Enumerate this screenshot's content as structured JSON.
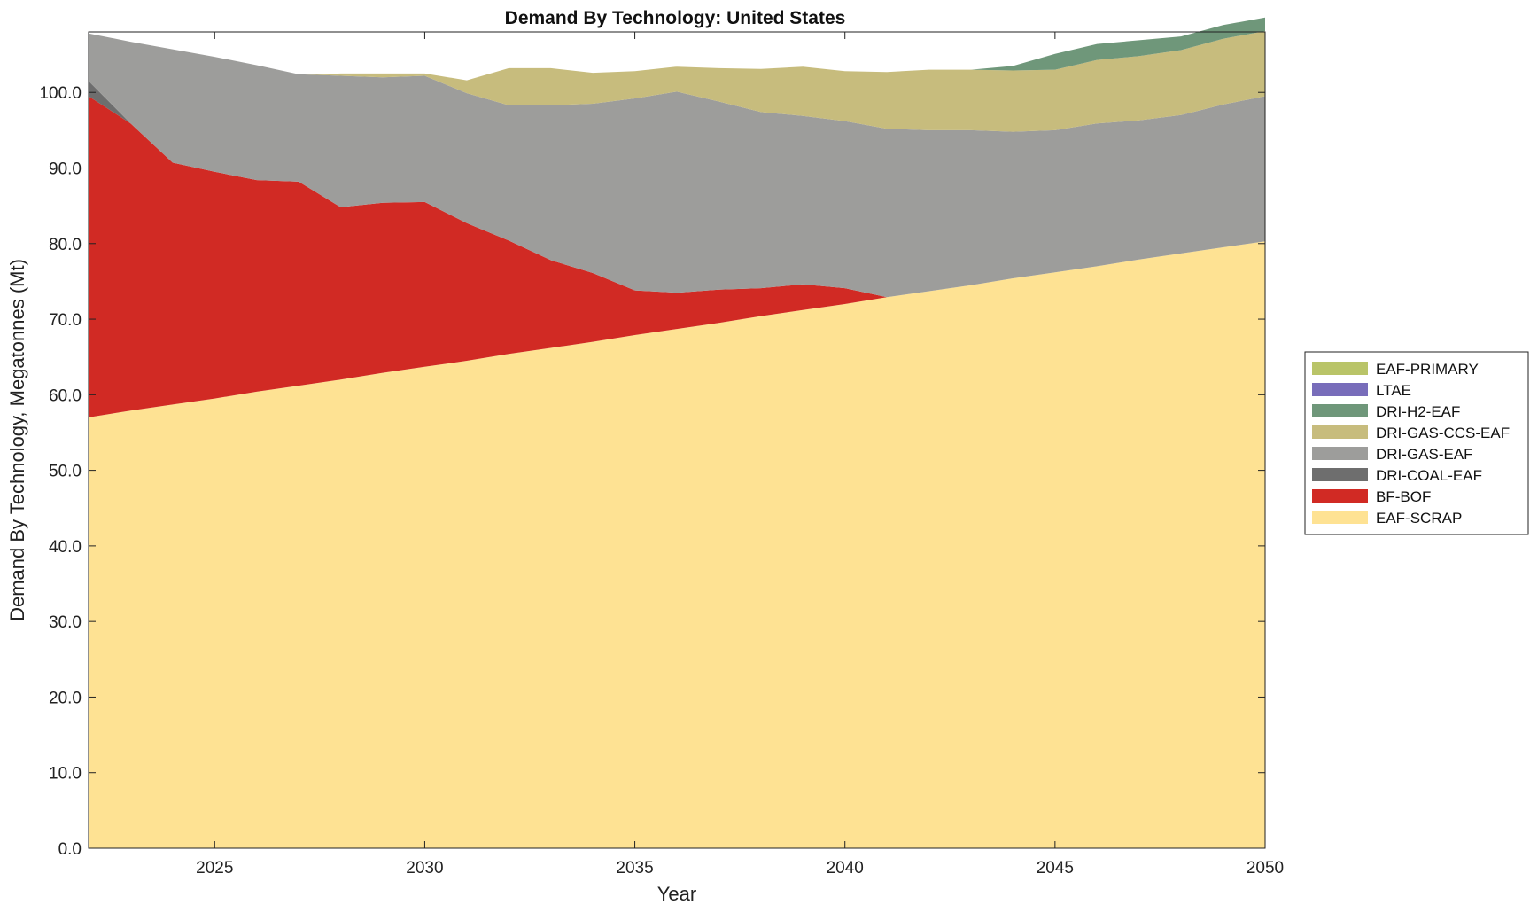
{
  "chart_data": {
    "type": "area",
    "stacked": true,
    "title": "Demand By Technology: United States",
    "xlabel": "Year",
    "ylabel": "Demand By Technology, Megatonnes (Mt)",
    "xlim": [
      2022,
      2050
    ],
    "ylim": [
      0,
      108
    ],
    "x_ticks": [
      "2025",
      "2030",
      "2035",
      "2040",
      "2045",
      "2050"
    ],
    "x_tick_values": [
      2025,
      2030,
      2035,
      2040,
      2045,
      2050
    ],
    "y_ticks": [
      "0.0",
      "10.0",
      "20.0",
      "30.0",
      "40.0",
      "50.0",
      "60.0",
      "70.0",
      "80.0",
      "90.0",
      "100.0"
    ],
    "y_tick_values": [
      0,
      10,
      20,
      30,
      40,
      50,
      60,
      70,
      80,
      90,
      100
    ],
    "grid": false,
    "legend_position": "right",
    "x": [
      2022,
      2023,
      2024,
      2025,
      2026,
      2027,
      2028,
      2029,
      2030,
      2031,
      2032,
      2033,
      2034,
      2035,
      2036,
      2037,
      2038,
      2039,
      2040,
      2041,
      2042,
      2043,
      2044,
      2045,
      2046,
      2047,
      2048,
      2049,
      2050
    ],
    "series": [
      {
        "name": "EAF-SCRAP",
        "color": "#FEE293",
        "values": [
          57.0,
          57.9,
          58.7,
          59.5,
          60.4,
          61.2,
          62.0,
          62.9,
          63.7,
          64.5,
          65.4,
          66.2,
          67.0,
          67.9,
          68.7,
          69.5,
          70.4,
          71.2,
          72.0,
          72.9,
          73.7,
          74.5,
          75.4,
          76.2,
          77.0,
          77.9,
          78.7,
          79.5,
          80.3
        ]
      },
      {
        "name": "BF-BOF",
        "color": "#D12A24",
        "values": [
          42.5,
          38.0,
          32.0,
          30.0,
          28.0,
          27.0,
          22.8,
          22.5,
          21.8,
          18.2,
          15.0,
          11.6,
          9.1,
          5.9,
          4.8,
          4.4,
          3.7,
          3.4,
          2.1,
          0.0,
          0.0,
          0.0,
          0.0,
          0.0,
          0.0,
          0.0,
          0.0,
          0.0,
          0.0
        ]
      },
      {
        "name": "DRI-COAL-EAF",
        "color": "#6E6E6E",
        "values": [
          2.0,
          0.0,
          0.0,
          0.0,
          0.0,
          0.0,
          0.0,
          0.0,
          0.0,
          0.0,
          0.0,
          0.0,
          0.0,
          0.0,
          0.0,
          0.0,
          0.0,
          0.0,
          0.0,
          0.0,
          0.0,
          0.0,
          0.0,
          0.0,
          0.0,
          0.0,
          0.0,
          0.0,
          0.0
        ]
      },
      {
        "name": "DRI-GAS-EAF",
        "color": "#9D9D9B",
        "values": [
          6.3,
          10.8,
          15.0,
          15.2,
          15.2,
          14.2,
          17.4,
          16.6,
          16.7,
          17.2,
          17.9,
          20.5,
          22.4,
          25.4,
          26.6,
          24.9,
          23.3,
          22.3,
          22.1,
          22.3,
          21.3,
          20.5,
          19.4,
          18.8,
          18.9,
          18.4,
          18.3,
          18.9,
          19.2
        ]
      },
      {
        "name": "DRI-GAS-CCS-EAF",
        "color": "#C7BC7D",
        "values": [
          0.0,
          0.0,
          0.0,
          0.0,
          0.0,
          0.0,
          0.3,
          0.5,
          0.3,
          1.7,
          4.9,
          4.9,
          4.1,
          3.6,
          3.3,
          4.4,
          5.7,
          6.5,
          6.6,
          7.5,
          8.0,
          8.0,
          8.1,
          8.0,
          8.4,
          8.5,
          8.6,
          8.7,
          8.6
        ]
      },
      {
        "name": "DRI-H2-EAF",
        "color": "#6F977A",
        "values": [
          0.0,
          0.0,
          0.0,
          0.0,
          0.0,
          0.0,
          0.0,
          0.0,
          0.0,
          0.0,
          0.0,
          0.0,
          0.0,
          0.0,
          0.0,
          0.0,
          0.0,
          0.0,
          0.0,
          0.0,
          0.0,
          0.0,
          0.6,
          2.1,
          2.1,
          2.1,
          1.8,
          1.8,
          1.8
        ]
      },
      {
        "name": "LTAE",
        "color": "#786DBA",
        "values": [
          0,
          0,
          0,
          0,
          0,
          0,
          0,
          0,
          0,
          0,
          0,
          0,
          0,
          0,
          0,
          0,
          0,
          0,
          0,
          0,
          0,
          0,
          0,
          0,
          0,
          0,
          0,
          0,
          0
        ]
      },
      {
        "name": "EAF-PRIMARY",
        "color": "#B9C468",
        "values": [
          0,
          0,
          0,
          0,
          0,
          0,
          0,
          0,
          0,
          0,
          0,
          0,
          0,
          0,
          0,
          0,
          0,
          0,
          0,
          0,
          0,
          0,
          0,
          0,
          0,
          0,
          0,
          0,
          0
        ]
      }
    ],
    "legend_order": [
      "EAF-PRIMARY",
      "LTAE",
      "DRI-H2-EAF",
      "DRI-GAS-CCS-EAF",
      "DRI-GAS-EAF",
      "DRI-COAL-EAF",
      "BF-BOF",
      "EAF-SCRAP"
    ]
  }
}
